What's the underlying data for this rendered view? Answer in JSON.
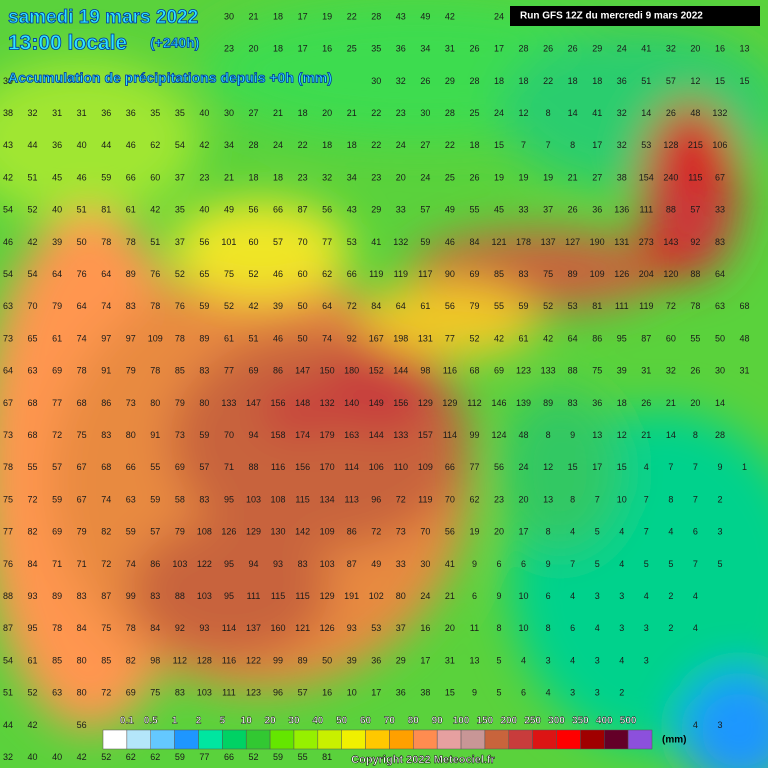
{
  "header": {
    "date": "samedi 19 mars 2022",
    "time": "13:00 locale",
    "lead": "(+240h)",
    "field": "Accumulation de précipitations depuis +0h (mm)",
    "run": "Run GFS 12Z du mercredi 9 mars 2022",
    "copyright": "Copyright 2022 Meteociel.fr"
  },
  "grid": {
    "rows": [
      [
        null,
        null,
        null,
        null,
        null,
        null,
        null,
        null,
        null,
        30,
        21,
        18,
        17,
        19,
        22,
        28,
        43,
        49,
        42,
        null,
        24
      ],
      [
        null,
        null,
        null,
        null,
        null,
        null,
        null,
        null,
        null,
        23,
        20,
        18,
        17,
        16,
        25,
        35,
        36,
        34,
        31,
        26,
        17,
        28,
        26,
        26,
        29,
        24,
        41,
        32,
        20,
        16,
        13
      ],
      [
        39,
        null,
        null,
        null,
        null,
        null,
        null,
        null,
        null,
        null,
        null,
        null,
        null,
        null,
        null,
        30,
        32,
        26,
        29,
        28,
        18,
        18,
        22,
        18,
        18,
        36,
        51,
        57,
        12,
        15,
        15
      ],
      [
        38,
        32,
        31,
        31,
        36,
        36,
        35,
        35,
        40,
        30,
        27,
        21,
        18,
        20,
        21,
        22,
        23,
        30,
        28,
        25,
        24,
        12,
        8,
        14,
        41,
        32,
        14,
        26,
        48,
        132
      ],
      [
        43,
        44,
        36,
        40,
        44,
        46,
        62,
        54,
        42,
        34,
        28,
        24,
        22,
        18,
        18,
        22,
        24,
        27,
        22,
        18,
        15,
        7,
        7,
        8,
        17,
        32,
        53,
        128,
        215,
        106
      ],
      [
        42,
        51,
        45,
        46,
        59,
        66,
        60,
        37,
        23,
        21,
        18,
        18,
        23,
        32,
        34,
        23,
        20,
        24,
        25,
        26,
        19,
        19,
        19,
        21,
        27,
        38,
        154,
        240,
        115,
        67
      ],
      [
        54,
        52,
        40,
        51,
        81,
        61,
        42,
        35,
        40,
        49,
        56,
        66,
        87,
        56,
        43,
        29,
        33,
        57,
        49,
        55,
        45,
        33,
        37,
        26,
        36,
        136,
        111,
        88,
        57,
        33
      ],
      [
        46,
        42,
        39,
        50,
        78,
        78,
        51,
        37,
        56,
        101,
        60,
        57,
        70,
        77,
        53,
        41,
        132,
        59,
        46,
        84,
        121,
        178,
        137,
        127,
        190,
        131,
        273,
        143,
        92,
        83
      ],
      [
        54,
        54,
        64,
        76,
        64,
        89,
        76,
        52,
        65,
        75,
        52,
        46,
        60,
        62,
        66,
        119,
        119,
        117,
        90,
        69,
        85,
        83,
        75,
        89,
        109,
        126,
        204,
        120,
        88,
        64
      ],
      [
        63,
        70,
        79,
        64,
        74,
        83,
        78,
        76,
        59,
        52,
        42,
        39,
        50,
        64,
        72,
        84,
        64,
        61,
        56,
        79,
        55,
        59,
        52,
        53,
        81,
        111,
        119,
        72,
        78,
        63,
        68
      ],
      [
        73,
        65,
        61,
        74,
        97,
        97,
        109,
        78,
        89,
        61,
        51,
        46,
        50,
        74,
        92,
        167,
        198,
        131,
        77,
        52,
        42,
        61,
        42,
        64,
        86,
        95,
        87,
        60,
        55,
        50,
        48
      ],
      [
        64,
        63,
        69,
        78,
        91,
        79,
        78,
        85,
        83,
        77,
        69,
        86,
        147,
        150,
        180,
        152,
        144,
        98,
        116,
        68,
        69,
        123,
        133,
        88,
        75,
        39,
        31,
        32,
        26,
        30,
        31
      ],
      [
        67,
        68,
        77,
        68,
        86,
        73,
        80,
        79,
        80,
        133,
        147,
        156,
        148,
        132,
        140,
        149,
        156,
        129,
        129,
        112,
        146,
        139,
        89,
        83,
        36,
        18,
        26,
        21,
        20,
        14
      ],
      [
        73,
        68,
        72,
        75,
        83,
        80,
        91,
        73,
        59,
        70,
        94,
        158,
        174,
        179,
        163,
        144,
        133,
        157,
        114,
        99,
        124,
        48,
        8,
        9,
        13,
        12,
        21,
        14,
        8,
        28
      ],
      [
        78,
        55,
        57,
        67,
        68,
        66,
        55,
        69,
        57,
        71,
        88,
        116,
        156,
        170,
        114,
        106,
        110,
        109,
        66,
        77,
        56,
        24,
        12,
        15,
        17,
        15,
        4,
        7,
        7,
        9,
        1
      ],
      [
        75,
        72,
        59,
        67,
        74,
        63,
        59,
        58,
        83,
        95,
        103,
        108,
        115,
        134,
        113,
        96,
        72,
        119,
        70,
        62,
        23,
        20,
        13,
        8,
        7,
        10,
        7,
        8,
        7,
        2
      ],
      [
        77,
        82,
        69,
        79,
        82,
        59,
        57,
        79,
        108,
        126,
        129,
        130,
        142,
        109,
        86,
        72,
        73,
        70,
        56,
        19,
        20,
        17,
        8,
        4,
        5,
        4,
        7,
        4,
        6,
        3
      ],
      [
        76,
        84,
        71,
        71,
        72,
        74,
        86,
        103,
        122,
        95,
        94,
        93,
        83,
        103,
        87,
        49,
        33,
        30,
        41,
        9,
        6,
        6,
        9,
        7,
        5,
        4,
        5,
        5,
        7,
        5
      ],
      [
        88,
        93,
        89,
        83,
        87,
        99,
        83,
        88,
        103,
        95,
        111,
        115,
        115,
        129,
        191,
        102,
        80,
        24,
        21,
        6,
        9,
        10,
        6,
        4,
        3,
        3,
        4,
        2,
        4
      ],
      [
        87,
        95,
        78,
        84,
        75,
        78,
        84,
        92,
        93,
        114,
        137,
        160,
        121,
        126,
        93,
        53,
        37,
        16,
        20,
        11,
        8,
        10,
        8,
        6,
        4,
        3,
        3,
        2,
        4
      ],
      [
        54,
        61,
        85,
        80,
        85,
        82,
        98,
        112,
        128,
        116,
        122,
        99,
        89,
        50,
        39,
        36,
        29,
        17,
        31,
        13,
        5,
        4,
        3,
        4,
        3,
        4,
        3
      ],
      [
        51,
        52,
        63,
        80,
        72,
        69,
        75,
        83,
        103,
        111,
        123,
        96,
        57,
        16,
        10,
        17,
        36,
        38,
        15,
        9,
        5,
        6,
        4,
        3,
        3,
        2
      ],
      [
        44,
        42,
        null,
        56,
        null,
        null,
        null,
        null,
        null,
        null,
        null,
        null,
        null,
        null,
        null,
        null,
        null,
        null,
        null,
        null,
        null,
        null,
        null,
        null,
        null,
        null,
        null,
        null,
        4,
        3
      ],
      [
        32,
        40,
        40,
        42,
        52,
        62,
        62,
        59,
        77,
        66,
        52,
        59,
        55,
        81
      ]
    ]
  },
  "legend": {
    "labels": [
      0.1,
      0.5,
      1,
      2,
      5,
      10,
      20,
      30,
      40,
      50,
      60,
      70,
      80,
      90,
      100,
      150,
      200,
      250,
      300,
      350,
      400,
      500
    ],
    "unit": "(mm)",
    "colors": [
      "#ffffff",
      "#b4e6fa",
      "#64c8ff",
      "#1e96ff",
      "#00e6a0",
      "#00d264",
      "#32c832",
      "#64e600",
      "#96f000",
      "#c8f000",
      "#f0f000",
      "#ffc800",
      "#ffa000",
      "#ff8c50",
      "#e6a0a0",
      "#c89696",
      "#c8643c",
      "#c83c3c",
      "#dc1414",
      "#ff0000",
      "#a00000",
      "#640028",
      "#8c50dc"
    ]
  }
}
